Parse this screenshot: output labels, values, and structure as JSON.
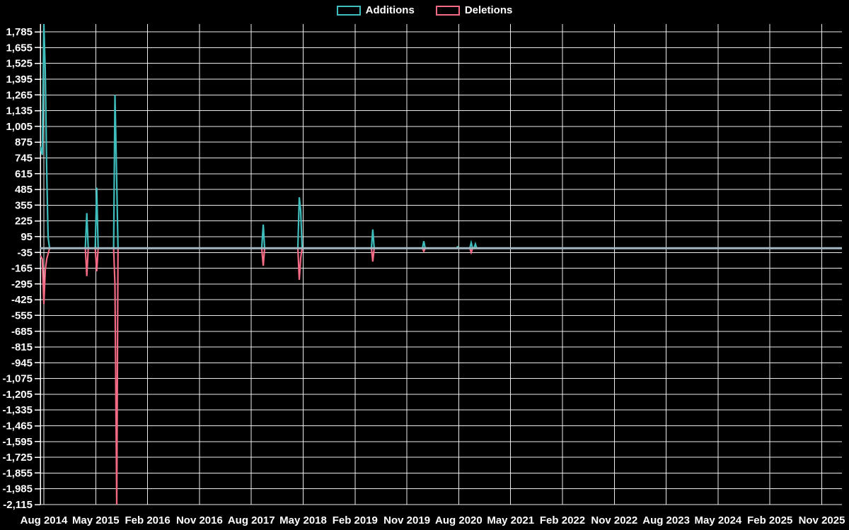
{
  "legend": {
    "items": [
      {
        "label": "Additions",
        "color": "#3fbdbd"
      },
      {
        "label": "Deletions",
        "color": "#f26a84"
      }
    ]
  },
  "chart_data": {
    "type": "line",
    "title": "",
    "xlabel": "",
    "ylabel": "",
    "background": "#000000",
    "grid": true,
    "grid_color": "#ffffff",
    "text_color": "#ffffff",
    "zero_line_color": "#a4b8c3",
    "legend_position": "top-center",
    "x_tick_labels": [
      "Aug 2014",
      "May 2015",
      "Feb 2016",
      "Nov 2016",
      "Aug 2017",
      "May 2018",
      "Feb 2019",
      "Nov 2019",
      "Aug 2020",
      "May 2021",
      "Feb 2022",
      "Nov 2022",
      "Aug 2023",
      "May 2024",
      "Feb 2025",
      "Nov 2025"
    ],
    "y_tick_values": [
      1785,
      1655,
      1525,
      1395,
      1265,
      1135,
      1005,
      875,
      745,
      615,
      485,
      355,
      225,
      95,
      -35,
      -165,
      -295,
      -425,
      -555,
      -685,
      -815,
      -945,
      -1075,
      -1205,
      -1335,
      -1465,
      -1595,
      -1725,
      -1855,
      -1985,
      -2115
    ],
    "y_axis": {
      "min": -2115,
      "max": 1850
    },
    "x_axis_note": "x in tick units, 1 unit = 9 months (one labeled tick)",
    "series": [
      {
        "name": "Additions",
        "color": "#3fbdbd",
        "points": [
          [
            -0.068,
            840
          ],
          [
            -0.03,
            770
          ],
          [
            0.0,
            1850
          ],
          [
            0.027,
            1460
          ],
          [
            0.055,
            640
          ],
          [
            0.082,
            90
          ],
          [
            0.11,
            0
          ],
          [
            0.8,
            0
          ],
          [
            0.828,
            290
          ],
          [
            0.855,
            0
          ],
          [
            0.99,
            0
          ],
          [
            1.019,
            500
          ],
          [
            1.046,
            0
          ],
          [
            1.345,
            0
          ],
          [
            1.371,
            1265
          ],
          [
            1.405,
            545
          ],
          [
            1.43,
            0
          ],
          [
            4.2,
            0
          ],
          [
            4.23,
            195
          ],
          [
            4.257,
            0
          ],
          [
            4.898,
            0
          ],
          [
            4.925,
            420
          ],
          [
            4.952,
            310
          ],
          [
            4.98,
            0
          ],
          [
            6.316,
            0
          ],
          [
            6.343,
            155
          ],
          [
            6.37,
            0
          ],
          [
            7.3,
            0
          ],
          [
            7.326,
            58
          ],
          [
            7.353,
            0
          ],
          [
            7.953,
            0
          ],
          [
            7.98,
            12
          ],
          [
            8.007,
            0
          ],
          [
            8.213,
            0
          ],
          [
            8.24,
            45
          ],
          [
            8.267,
            0
          ],
          [
            8.293,
            0
          ],
          [
            8.32,
            35
          ],
          [
            8.347,
            0
          ],
          [
            15.39,
            0
          ]
        ]
      },
      {
        "name": "Deletions",
        "color": "#f26a84",
        "points": [
          [
            -0.068,
            -60
          ],
          [
            -0.03,
            -90
          ],
          [
            0.0,
            -460
          ],
          [
            0.027,
            -180
          ],
          [
            0.055,
            -90
          ],
          [
            0.11,
            0
          ],
          [
            0.8,
            0
          ],
          [
            0.828,
            -230
          ],
          [
            0.855,
            0
          ],
          [
            0.99,
            0
          ],
          [
            1.019,
            -190
          ],
          [
            1.046,
            0
          ],
          [
            1.345,
            0
          ],
          [
            1.371,
            -300
          ],
          [
            1.405,
            -2115
          ],
          [
            1.43,
            0
          ],
          [
            4.2,
            0
          ],
          [
            4.23,
            -145
          ],
          [
            4.257,
            0
          ],
          [
            4.898,
            0
          ],
          [
            4.925,
            -260
          ],
          [
            4.952,
            -80
          ],
          [
            4.98,
            0
          ],
          [
            6.316,
            0
          ],
          [
            6.343,
            -110
          ],
          [
            6.37,
            0
          ],
          [
            7.3,
            0
          ],
          [
            7.326,
            -25
          ],
          [
            7.353,
            0
          ],
          [
            8.213,
            0
          ],
          [
            8.24,
            -35
          ],
          [
            8.267,
            0
          ],
          [
            15.39,
            0
          ]
        ]
      }
    ]
  }
}
